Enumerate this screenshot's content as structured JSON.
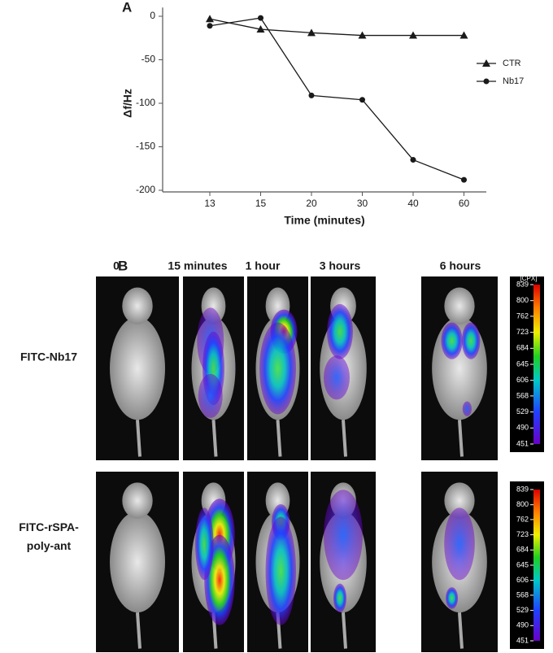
{
  "panel_a_label": "A",
  "chart_data": {
    "type": "line",
    "y_label": "Δf/Hz",
    "x_label": "Time (minutes)",
    "categories": [
      "13",
      "15",
      "20",
      "30",
      "40",
      "60"
    ],
    "series": [
      {
        "name": "CTR",
        "color": "#1a1a1a",
        "marker": "triangle",
        "values": [
          -3,
          -15,
          -19,
          -22,
          -22,
          -22
        ]
      },
      {
        "name": "Nb17",
        "color": "#1a1a1a",
        "marker": "circle",
        "values": [
          -11,
          -2,
          -91,
          -96,
          -165,
          -188
        ]
      }
    ],
    "ylim": [
      -200,
      10
    ],
    "yticks": [
      0,
      -50,
      -100,
      -150,
      -200
    ],
    "legend": "right",
    "grid": false
  },
  "panel_b": {
    "label": "B",
    "columns": [
      "0",
      "15 minutes",
      "1 hour",
      "3 hours",
      "6 hours"
    ],
    "rows": [
      {
        "label": [
          "FITC-Nb17"
        ]
      },
      {
        "label": [
          "FITC-rSPA-",
          "poly-ant"
        ]
      }
    ],
    "colorbar": {
      "unit": "[CPX]",
      "ticks": [
        839,
        800,
        762,
        723,
        684,
        645,
        606,
        568,
        529,
        490,
        451
      ]
    }
  }
}
